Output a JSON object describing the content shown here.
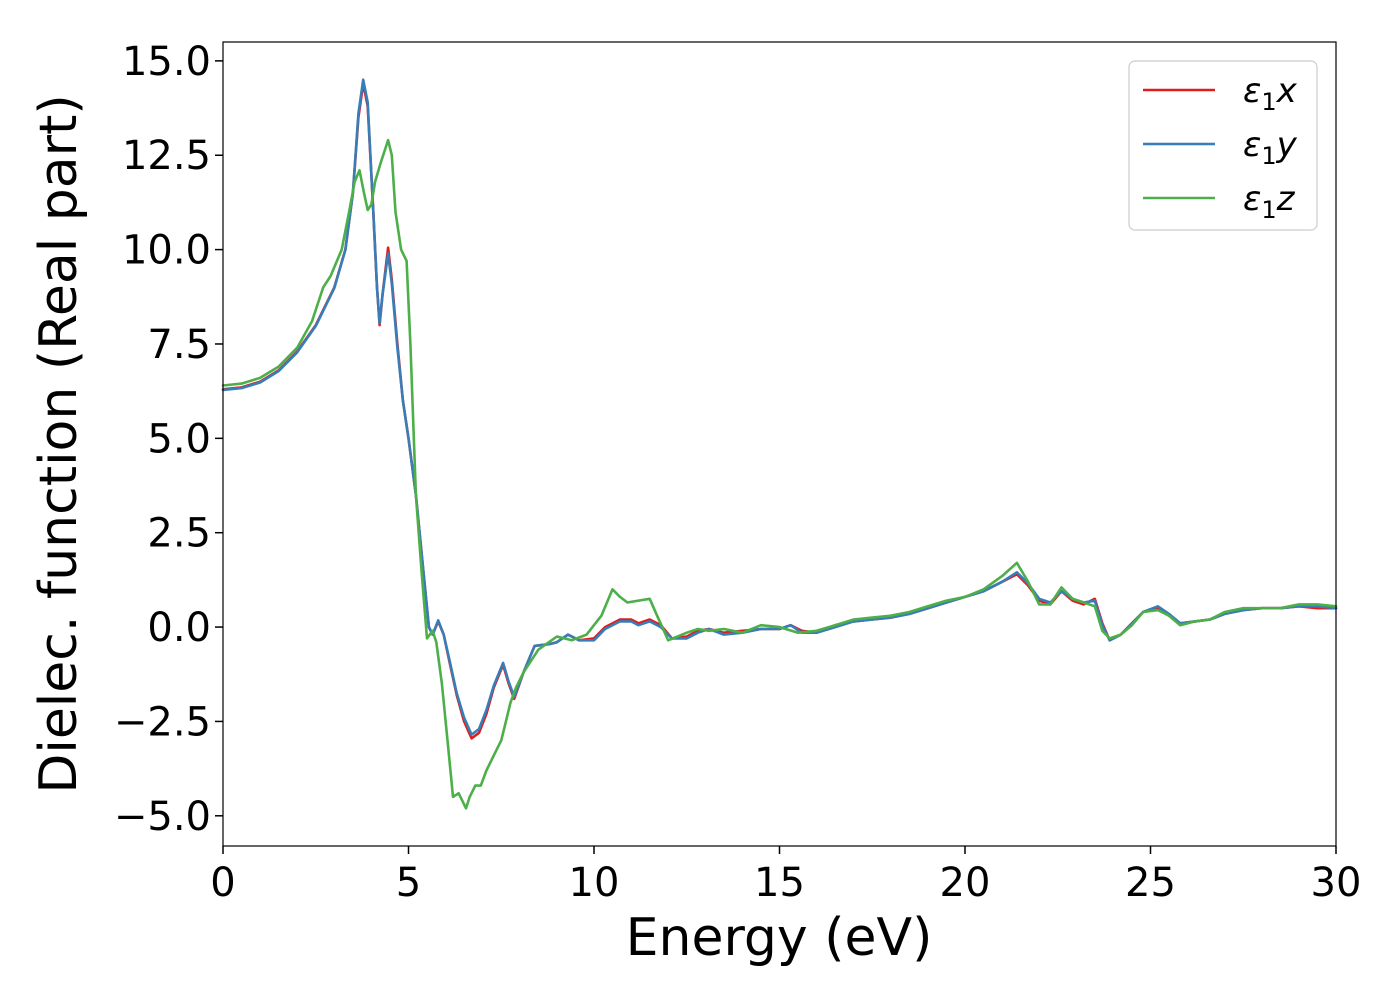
{
  "chart_data": {
    "type": "line",
    "title": "",
    "xlabel": "Energy (eV)",
    "ylabel": "Dielec. function (Real part)",
    "xlim": [
      0,
      30
    ],
    "ylim": [
      -5.8,
      15.5
    ],
    "xticks": [
      0,
      5,
      10,
      15,
      20,
      25,
      30
    ],
    "xtick_labels": [
      "0",
      "5",
      "10",
      "15",
      "20",
      "25",
      "30"
    ],
    "yticks": [
      -5.0,
      -2.5,
      0.0,
      2.5,
      5.0,
      7.5,
      10.0,
      12.5,
      15.0
    ],
    "ytick_labels": [
      "−5.0",
      "−2.5",
      "0.0",
      "2.5",
      "5.0",
      "7.5",
      "10.0",
      "12.5",
      "15.0"
    ],
    "grid": false,
    "legend_position": "top-right",
    "series": [
      {
        "name": "ε₁x",
        "legend_base": "ε",
        "legend_sub": "1",
        "legend_suffix": "x",
        "color": "#e41a1c",
        "points": [
          [
            0,
            6.3
          ],
          [
            0.5,
            6.35
          ],
          [
            1,
            6.5
          ],
          [
            1.5,
            6.8
          ],
          [
            2,
            7.3
          ],
          [
            2.5,
            8.0
          ],
          [
            3,
            9.0
          ],
          [
            3.3,
            10.0
          ],
          [
            3.5,
            11.5
          ],
          [
            3.65,
            13.5
          ],
          [
            3.78,
            14.4
          ],
          [
            3.9,
            13.8
          ],
          [
            4.05,
            11.0
          ],
          [
            4.15,
            9.0
          ],
          [
            4.22,
            8.0
          ],
          [
            4.3,
            8.8
          ],
          [
            4.45,
            10.05
          ],
          [
            4.55,
            9.2
          ],
          [
            4.7,
            7.5
          ],
          [
            4.85,
            6.0
          ],
          [
            5.0,
            5.0
          ],
          [
            5.2,
            3.5
          ],
          [
            5.4,
            1.5
          ],
          [
            5.55,
            0.0
          ],
          [
            5.65,
            -0.2
          ],
          [
            5.8,
            0.15
          ],
          [
            5.95,
            -0.2
          ],
          [
            6.1,
            -0.9
          ],
          [
            6.3,
            -1.8
          ],
          [
            6.5,
            -2.5
          ],
          [
            6.7,
            -2.95
          ],
          [
            6.9,
            -2.8
          ],
          [
            7.1,
            -2.3
          ],
          [
            7.3,
            -1.6
          ],
          [
            7.55,
            -1.0
          ],
          [
            7.7,
            -1.5
          ],
          [
            7.85,
            -1.9
          ],
          [
            8.1,
            -1.2
          ],
          [
            8.4,
            -0.5
          ],
          [
            8.8,
            -0.45
          ],
          [
            9.0,
            -0.4
          ],
          [
            9.3,
            -0.2
          ],
          [
            9.6,
            -0.35
          ],
          [
            10.0,
            -0.3
          ],
          [
            10.3,
            0.0
          ],
          [
            10.7,
            0.2
          ],
          [
            11.0,
            0.2
          ],
          [
            11.2,
            0.1
          ],
          [
            11.5,
            0.2
          ],
          [
            11.8,
            0.05
          ],
          [
            12.1,
            -0.3
          ],
          [
            12.5,
            -0.25
          ],
          [
            12.8,
            -0.1
          ],
          [
            13.1,
            -0.05
          ],
          [
            13.5,
            -0.15
          ],
          [
            14.0,
            -0.1
          ],
          [
            14.5,
            -0.05
          ],
          [
            15.0,
            -0.05
          ],
          [
            15.3,
            0.05
          ],
          [
            15.6,
            -0.1
          ],
          [
            16.0,
            -0.15
          ],
          [
            16.5,
            0.05
          ],
          [
            17.0,
            0.15
          ],
          [
            17.5,
            0.2
          ],
          [
            18.0,
            0.25
          ],
          [
            18.5,
            0.35
          ],
          [
            19.0,
            0.5
          ],
          [
            19.5,
            0.65
          ],
          [
            20.0,
            0.8
          ],
          [
            20.5,
            0.95
          ],
          [
            21.0,
            1.2
          ],
          [
            21.4,
            1.4
          ],
          [
            21.7,
            1.1
          ],
          [
            22.0,
            0.7
          ],
          [
            22.3,
            0.6
          ],
          [
            22.6,
            0.95
          ],
          [
            22.9,
            0.7
          ],
          [
            23.2,
            0.6
          ],
          [
            23.5,
            0.75
          ],
          [
            23.7,
            0.1
          ],
          [
            23.9,
            -0.35
          ],
          [
            24.2,
            -0.2
          ],
          [
            24.5,
            0.1
          ],
          [
            24.8,
            0.4
          ],
          [
            25.2,
            0.5
          ],
          [
            25.5,
            0.3
          ],
          [
            25.8,
            0.1
          ],
          [
            26.2,
            0.15
          ],
          [
            26.6,
            0.2
          ],
          [
            27.0,
            0.35
          ],
          [
            27.5,
            0.45
          ],
          [
            28.0,
            0.5
          ],
          [
            28.5,
            0.5
          ],
          [
            29.0,
            0.55
          ],
          [
            29.5,
            0.5
          ],
          [
            30.0,
            0.5
          ]
        ]
      },
      {
        "name": "ε₁y",
        "legend_base": "ε",
        "legend_sub": "1",
        "legend_suffix": "y",
        "color": "#377eb8",
        "points": [
          [
            0,
            6.28
          ],
          [
            0.5,
            6.33
          ],
          [
            1,
            6.48
          ],
          [
            1.5,
            6.78
          ],
          [
            2,
            7.28
          ],
          [
            2.5,
            7.98
          ],
          [
            3,
            8.98
          ],
          [
            3.3,
            10.0
          ],
          [
            3.5,
            11.5
          ],
          [
            3.65,
            13.6
          ],
          [
            3.78,
            14.5
          ],
          [
            3.9,
            13.9
          ],
          [
            4.05,
            11.0
          ],
          [
            4.15,
            9.0
          ],
          [
            4.22,
            8.05
          ],
          [
            4.3,
            8.8
          ],
          [
            4.45,
            9.9
          ],
          [
            4.55,
            9.1
          ],
          [
            4.7,
            7.4
          ],
          [
            4.85,
            6.0
          ],
          [
            5.0,
            5.0
          ],
          [
            5.2,
            3.5
          ],
          [
            5.4,
            1.5
          ],
          [
            5.55,
            0.0
          ],
          [
            5.65,
            -0.2
          ],
          [
            5.8,
            0.18
          ],
          [
            5.95,
            -0.2
          ],
          [
            6.1,
            -0.85
          ],
          [
            6.3,
            -1.75
          ],
          [
            6.5,
            -2.4
          ],
          [
            6.7,
            -2.85
          ],
          [
            6.9,
            -2.7
          ],
          [
            7.1,
            -2.2
          ],
          [
            7.3,
            -1.55
          ],
          [
            7.55,
            -0.95
          ],
          [
            7.7,
            -1.45
          ],
          [
            7.85,
            -1.85
          ],
          [
            8.1,
            -1.2
          ],
          [
            8.4,
            -0.5
          ],
          [
            8.8,
            -0.45
          ],
          [
            9.0,
            -0.4
          ],
          [
            9.3,
            -0.2
          ],
          [
            9.6,
            -0.35
          ],
          [
            10.0,
            -0.35
          ],
          [
            10.3,
            -0.05
          ],
          [
            10.7,
            0.15
          ],
          [
            11.0,
            0.15
          ],
          [
            11.2,
            0.05
          ],
          [
            11.5,
            0.15
          ],
          [
            11.8,
            0.0
          ],
          [
            12.1,
            -0.3
          ],
          [
            12.5,
            -0.3
          ],
          [
            12.8,
            -0.15
          ],
          [
            13.1,
            -0.05
          ],
          [
            13.5,
            -0.2
          ],
          [
            14.0,
            -0.15
          ],
          [
            14.5,
            -0.05
          ],
          [
            15.0,
            -0.05
          ],
          [
            15.3,
            0.05
          ],
          [
            15.6,
            -0.15
          ],
          [
            16.0,
            -0.15
          ],
          [
            16.5,
            0.0
          ],
          [
            17.0,
            0.15
          ],
          [
            17.5,
            0.2
          ],
          [
            18.0,
            0.25
          ],
          [
            18.5,
            0.35
          ],
          [
            19.0,
            0.5
          ],
          [
            19.5,
            0.65
          ],
          [
            20.0,
            0.8
          ],
          [
            20.5,
            0.95
          ],
          [
            21.0,
            1.2
          ],
          [
            21.4,
            1.45
          ],
          [
            21.7,
            1.15
          ],
          [
            22.0,
            0.75
          ],
          [
            22.3,
            0.65
          ],
          [
            22.6,
            0.95
          ],
          [
            22.9,
            0.75
          ],
          [
            23.2,
            0.65
          ],
          [
            23.5,
            0.7
          ],
          [
            23.7,
            0.05
          ],
          [
            23.9,
            -0.35
          ],
          [
            24.2,
            -0.2
          ],
          [
            24.5,
            0.1
          ],
          [
            24.8,
            0.4
          ],
          [
            25.2,
            0.55
          ],
          [
            25.5,
            0.35
          ],
          [
            25.8,
            0.1
          ],
          [
            26.2,
            0.15
          ],
          [
            26.6,
            0.2
          ],
          [
            27.0,
            0.35
          ],
          [
            27.5,
            0.45
          ],
          [
            28.0,
            0.5
          ],
          [
            28.5,
            0.5
          ],
          [
            29.0,
            0.55
          ],
          [
            29.5,
            0.55
          ],
          [
            30.0,
            0.5
          ]
        ]
      },
      {
        "name": "ε₁z",
        "legend_base": "ε",
        "legend_sub": "1",
        "legend_suffix": "z",
        "color": "#4daf4a",
        "points": [
          [
            0,
            6.4
          ],
          [
            0.5,
            6.45
          ],
          [
            1,
            6.6
          ],
          [
            1.5,
            6.9
          ],
          [
            2,
            7.4
          ],
          [
            2.4,
            8.1
          ],
          [
            2.7,
            9.0
          ],
          [
            2.9,
            9.3
          ],
          [
            3.2,
            10.0
          ],
          [
            3.4,
            11.0
          ],
          [
            3.55,
            11.8
          ],
          [
            3.68,
            12.1
          ],
          [
            3.8,
            11.5
          ],
          [
            3.9,
            11.05
          ],
          [
            4.0,
            11.2
          ],
          [
            4.1,
            11.8
          ],
          [
            4.25,
            12.3
          ],
          [
            4.35,
            12.6
          ],
          [
            4.45,
            12.9
          ],
          [
            4.55,
            12.5
          ],
          [
            4.65,
            11.0
          ],
          [
            4.8,
            10.0
          ],
          [
            4.95,
            9.7
          ],
          [
            5.05,
            7.5
          ],
          [
            5.2,
            3.5
          ],
          [
            5.35,
            1.5
          ],
          [
            5.5,
            -0.3
          ],
          [
            5.65,
            -0.1
          ],
          [
            5.75,
            -0.4
          ],
          [
            5.9,
            -1.5
          ],
          [
            6.05,
            -3.0
          ],
          [
            6.2,
            -4.5
          ],
          [
            6.35,
            -4.4
          ],
          [
            6.45,
            -4.6
          ],
          [
            6.55,
            -4.8
          ],
          [
            6.65,
            -4.5
          ],
          [
            6.8,
            -4.2
          ],
          [
            6.95,
            -4.2
          ],
          [
            7.1,
            -3.8
          ],
          [
            7.35,
            -3.3
          ],
          [
            7.5,
            -3.0
          ],
          [
            7.75,
            -2.0
          ],
          [
            7.9,
            -1.6
          ],
          [
            8.1,
            -1.2
          ],
          [
            8.5,
            -0.6
          ],
          [
            9.0,
            -0.25
          ],
          [
            9.4,
            -0.35
          ],
          [
            9.8,
            -0.2
          ],
          [
            10.2,
            0.3
          ],
          [
            10.5,
            1.0
          ],
          [
            10.7,
            0.8
          ],
          [
            10.9,
            0.65
          ],
          [
            11.2,
            0.7
          ],
          [
            11.5,
            0.75
          ],
          [
            11.7,
            0.3
          ],
          [
            12.0,
            -0.35
          ],
          [
            12.5,
            -0.15
          ],
          [
            12.8,
            -0.05
          ],
          [
            13.1,
            -0.1
          ],
          [
            13.5,
            -0.05
          ],
          [
            14.0,
            -0.15
          ],
          [
            14.5,
            0.05
          ],
          [
            15.0,
            0.0
          ],
          [
            15.5,
            -0.15
          ],
          [
            16.0,
            -0.1
          ],
          [
            16.5,
            0.05
          ],
          [
            17.0,
            0.2
          ],
          [
            17.5,
            0.25
          ],
          [
            18.0,
            0.3
          ],
          [
            18.5,
            0.4
          ],
          [
            19.0,
            0.55
          ],
          [
            19.5,
            0.7
          ],
          [
            20.0,
            0.8
          ],
          [
            20.5,
            1.0
          ],
          [
            21.0,
            1.35
          ],
          [
            21.4,
            1.7
          ],
          [
            21.7,
            1.2
          ],
          [
            22.0,
            0.6
          ],
          [
            22.3,
            0.6
          ],
          [
            22.6,
            1.05
          ],
          [
            22.9,
            0.75
          ],
          [
            23.2,
            0.65
          ],
          [
            23.5,
            0.55
          ],
          [
            23.7,
            -0.1
          ],
          [
            23.9,
            -0.3
          ],
          [
            24.2,
            -0.2
          ],
          [
            24.5,
            0.05
          ],
          [
            24.8,
            0.4
          ],
          [
            25.2,
            0.45
          ],
          [
            25.5,
            0.3
          ],
          [
            25.8,
            0.05
          ],
          [
            26.2,
            0.15
          ],
          [
            26.6,
            0.2
          ],
          [
            27.0,
            0.4
          ],
          [
            27.5,
            0.5
          ],
          [
            28.0,
            0.5
          ],
          [
            28.5,
            0.5
          ],
          [
            29.0,
            0.6
          ],
          [
            29.5,
            0.6
          ],
          [
            30.0,
            0.55
          ]
        ]
      }
    ]
  }
}
